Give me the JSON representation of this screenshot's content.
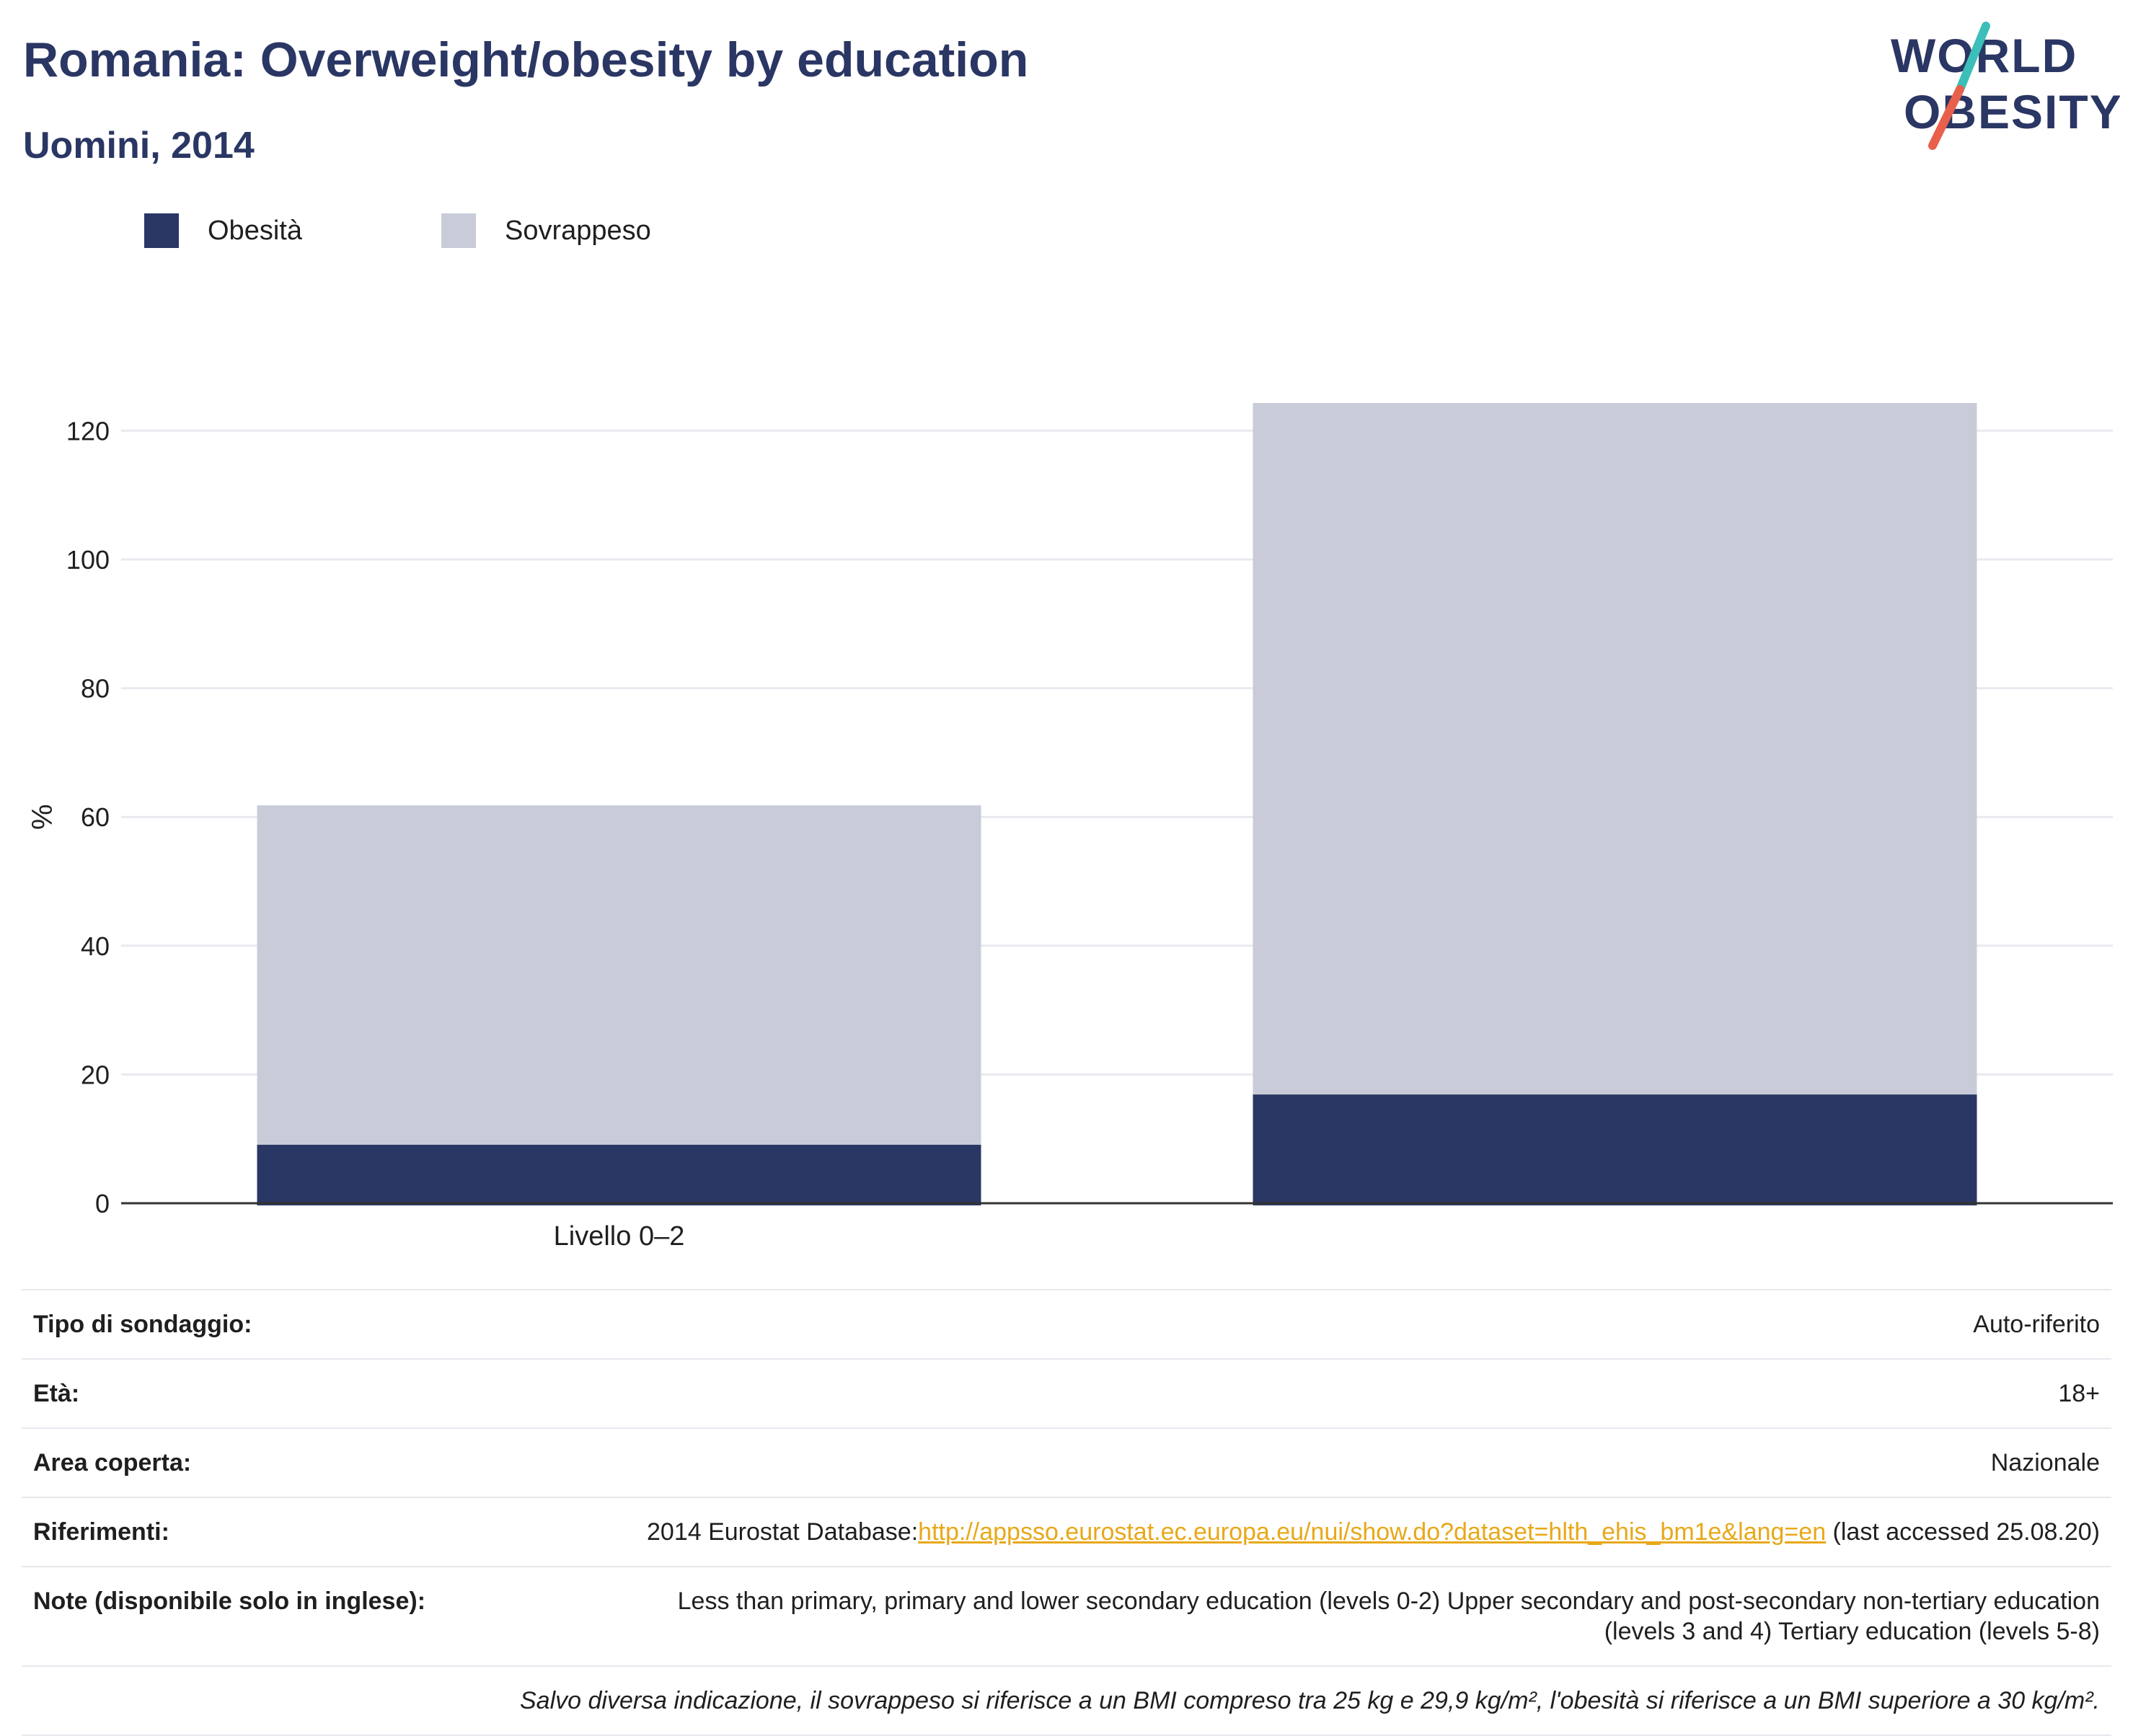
{
  "header": {
    "title": "Romania: Overweight/obesity by education",
    "subtitle": "Uomini, 2014"
  },
  "logo": {
    "line1": "WORLD",
    "line2": "OBESITY",
    "colors": {
      "text": "#2a3663",
      "slash_top": "#3cbfb8",
      "slash_bottom": "#e8604c"
    }
  },
  "legend": {
    "items": [
      {
        "label": "Obesità",
        "color": "#2a3663"
      },
      {
        "label": "Sovrappeso",
        "color": "#c9ccd8"
      }
    ]
  },
  "chart_data": {
    "type": "bar",
    "stacked": true,
    "categories": [
      "Livello 0–2",
      ""
    ],
    "series": [
      {
        "name": "Obesità",
        "color": "#2a3663",
        "values": [
          9.1,
          16.9
        ]
      },
      {
        "name": "Sovrappeso",
        "color": "#c9ccd8",
        "values": [
          52.7,
          107.4
        ]
      }
    ],
    "ylabel": "%",
    "ylim": [
      0,
      130
    ],
    "yticks": [
      0,
      20,
      40,
      60,
      80,
      100,
      120
    ],
    "grid": true,
    "legend_position": "top-left"
  },
  "info": {
    "rows": [
      {
        "key": "Tipo di sondaggio:",
        "value": "Auto-riferito"
      },
      {
        "key": "Età:",
        "value": "18+"
      },
      {
        "key": "Area coperta:",
        "value": "Nazionale"
      }
    ],
    "references": {
      "key": "Riferimenti:",
      "prefix": "2014 Eurostat Database:",
      "link": "http://appsso.eurostat.ec.europa.eu/nui/show.do?dataset=hlth_ehis_bm1e&lang=en",
      "suffix": " (last accessed 25.08.20)"
    },
    "notes": {
      "key": "Note (disponibile solo in inglese):",
      "value": "Less than primary, primary and lower secondary education (levels 0-2) Upper secondary and post-secondary non-tertiary education (levels 3 and 4) Tertiary education (levels 5-8)"
    },
    "footnote": "Salvo diversa indicazione, il sovrappeso si riferisce a un BMI compreso tra 25 kg e 29,9 kg/m², l'obesità si riferisce a un BMI superiore a 30 kg/m²."
  }
}
